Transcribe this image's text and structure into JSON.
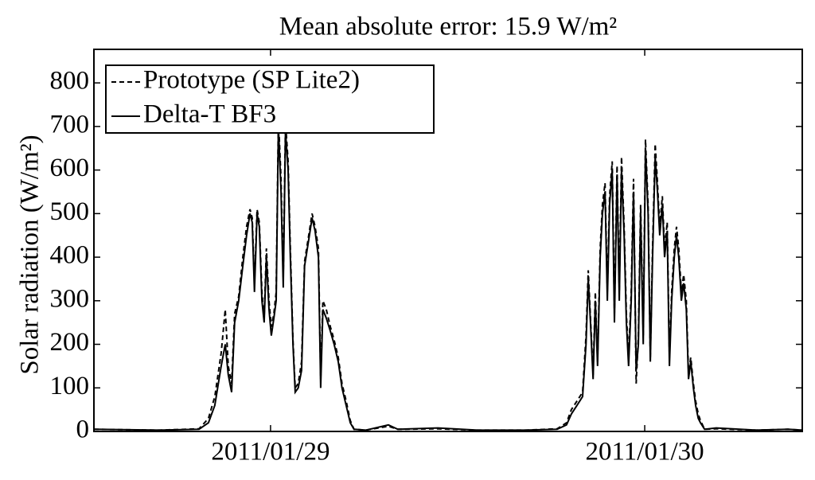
{
  "chart_data": {
    "type": "line",
    "title": "Mean absolute error: 15.9 W/m²",
    "ylabel": "Solar radiation (W/m²)",
    "x": [
      28.528,
      28.702,
      28.809,
      28.834,
      28.851,
      28.868,
      28.879,
      28.887,
      28.896,
      28.904,
      28.915,
      28.926,
      28.936,
      28.945,
      28.951,
      28.957,
      28.964,
      28.97,
      28.977,
      28.983,
      28.989,
      28.996,
      29.002,
      29.009,
      29.015,
      29.021,
      29.028,
      29.034,
      29.04,
      29.047,
      29.053,
      29.06,
      29.066,
      29.074,
      29.083,
      29.091,
      29.102,
      29.111,
      29.119,
      29.128,
      29.134,
      29.14,
      29.149,
      29.16,
      29.17,
      29.181,
      29.191,
      29.202,
      29.213,
      29.223,
      29.255,
      29.315,
      29.34,
      29.447,
      29.553,
      29.681,
      29.766,
      29.791,
      29.804,
      29.819,
      29.834,
      29.843,
      29.849,
      29.855,
      29.862,
      29.868,
      29.874,
      29.881,
      29.887,
      29.894,
      29.9,
      29.906,
      29.913,
      29.919,
      29.926,
      29.932,
      29.938,
      29.945,
      29.951,
      29.957,
      29.964,
      29.97,
      29.977,
      29.983,
      29.989,
      29.996,
      30.002,
      30.009,
      30.015,
      30.021,
      30.028,
      30.034,
      30.04,
      30.047,
      30.053,
      30.06,
      30.066,
      30.072,
      30.079,
      30.085,
      30.091,
      30.098,
      30.104,
      30.111,
      30.117,
      30.123,
      30.13,
      30.136,
      30.143,
      30.149,
      30.16,
      30.191,
      30.298,
      30.383,
      30.421
    ],
    "series": [
      {
        "name": "Prototype (SP Lite2)",
        "color": "#000000",
        "dashed": true,
        "values": [
          5,
          3,
          6,
          30,
          80,
          180,
          280,
          150,
          110,
          270,
          310,
          400,
          470,
          510,
          490,
          340,
          510,
          480,
          320,
          260,
          420,
          300,
          240,
          270,
          320,
          720,
          580,
          350,
          710,
          620,
          420,
          210,
          100,
          110,
          160,
          390,
          450,
          500,
          470,
          420,
          120,
          300,
          280,
          240,
          210,
          170,
          110,
          70,
          25,
          5,
          3,
          12,
          5,
          6,
          3,
          3,
          6,
          20,
          50,
          70,
          90,
          220,
          370,
          260,
          130,
          320,
          160,
          420,
          520,
          570,
          320,
          540,
          620,
          270,
          610,
          320,
          630,
          470,
          270,
          170,
          320,
          580,
          110,
          220,
          520,
          220,
          670,
          520,
          170,
          420,
          660,
          570,
          470,
          540,
          420,
          480,
          170,
          320,
          420,
          470,
          420,
          320,
          360,
          300,
          130,
          170,
          110,
          70,
          40,
          25,
          5,
          6,
          3,
          5,
          3
        ]
      },
      {
        "name": "Delta-T BF3",
        "color": "#000000",
        "dashed": false,
        "values": [
          5,
          3,
          5,
          20,
          60,
          150,
          200,
          130,
          90,
          250,
          300,
          380,
          450,
          500,
          480,
          320,
          500,
          470,
          300,
          250,
          400,
          280,
          220,
          260,
          300,
          700,
          550,
          330,
          690,
          600,
          400,
          200,
          90,
          100,
          140,
          380,
          440,
          490,
          460,
          400,
          100,
          280,
          260,
          230,
          200,
          160,
          100,
          60,
          20,
          5,
          3,
          15,
          5,
          8,
          3,
          3,
          5,
          15,
          40,
          60,
          80,
          200,
          350,
          250,
          120,
          300,
          150,
          400,
          500,
          550,
          300,
          520,
          600,
          250,
          590,
          300,
          600,
          450,
          250,
          150,
          300,
          550,
          140,
          200,
          500,
          200,
          650,
          500,
          160,
          400,
          630,
          550,
          450,
          520,
          400,
          460,
          150,
          300,
          400,
          450,
          400,
          300,
          340,
          280,
          120,
          160,
          100,
          60,
          30,
          20,
          5,
          8,
          3,
          5,
          3
        ]
      }
    ],
    "xlim": [
      28.528,
      30.421
    ],
    "xticks": [
      {
        "value": 29,
        "label": "2011/01/29"
      },
      {
        "value": 30,
        "label": "2011/01/30"
      }
    ],
    "ylim": [
      0,
      877
    ],
    "yticks": [
      0,
      100,
      200,
      300,
      400,
      500,
      600,
      700,
      800
    ],
    "legend": "upper left"
  }
}
